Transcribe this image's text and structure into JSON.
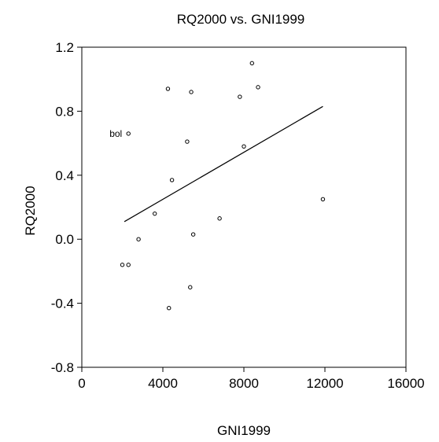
{
  "chart_data": {
    "type": "scatter",
    "title": "RQ2000 vs. GNI1999",
    "xlabel": "GNI1999",
    "ylabel": "RQ2000",
    "xlim": [
      0,
      16000
    ],
    "ylim": [
      -0.8,
      1.2
    ],
    "xticks": [
      "0",
      "4000",
      "8000",
      "12000",
      "16000"
    ],
    "xtick_values": [
      0,
      4000,
      8000,
      12000,
      16000
    ],
    "yticks": [
      "1.2",
      "0.8",
      "0.4",
      "0.0",
      "-0.4",
      "-0.8"
    ],
    "ytick_values": [
      1.2,
      0.8,
      0.4,
      0.0,
      -0.4,
      -0.8
    ],
    "grid": false,
    "colors": {
      "marker": "#000000",
      "line": "#000000",
      "axes": "#000000"
    },
    "points": [
      {
        "x": 2300,
        "y": 0.66,
        "label": "bol"
      },
      {
        "x": 2000,
        "y": -0.16
      },
      {
        "x": 2300,
        "y": -0.16
      },
      {
        "x": 2800,
        "y": 0.0
      },
      {
        "x": 3600,
        "y": 0.16
      },
      {
        "x": 4250,
        "y": 0.94
      },
      {
        "x": 4300,
        "y": -0.43
      },
      {
        "x": 4450,
        "y": 0.37
      },
      {
        "x": 5200,
        "y": 0.61
      },
      {
        "x": 5350,
        "y": -0.3
      },
      {
        "x": 5400,
        "y": 0.92
      },
      {
        "x": 5500,
        "y": 0.03
      },
      {
        "x": 6800,
        "y": 0.13
      },
      {
        "x": 7800,
        "y": 0.89
      },
      {
        "x": 8000,
        "y": 0.58
      },
      {
        "x": 8400,
        "y": 1.1
      },
      {
        "x": 8700,
        "y": 0.95
      },
      {
        "x": 11900,
        "y": 0.25
      }
    ],
    "fit_line": {
      "x": [
        2100,
        11900
      ],
      "y": [
        0.11,
        0.83
      ]
    }
  }
}
